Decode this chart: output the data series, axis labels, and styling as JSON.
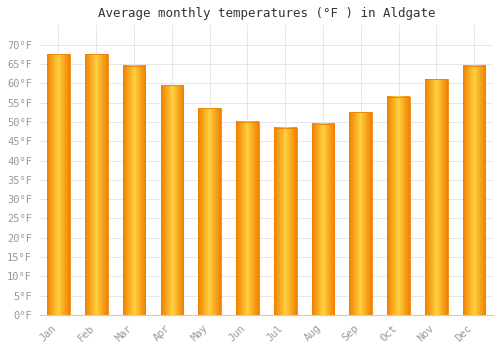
{
  "title": "Average monthly temperatures (°F ) in Aldgate",
  "months": [
    "Jan",
    "Feb",
    "Mar",
    "Apr",
    "May",
    "Jun",
    "Jul",
    "Aug",
    "Sep",
    "Oct",
    "Nov",
    "Dec"
  ],
  "values": [
    67.5,
    67.5,
    64.5,
    59.5,
    53.5,
    50.0,
    48.5,
    49.5,
    52.5,
    56.5,
    61.0,
    64.5
  ],
  "bar_color_center": "#FFD040",
  "bar_color_edge": "#F08000",
  "background_color": "#FFFFFF",
  "grid_color": "#DDDDDD",
  "ytick_labels": [
    "0°F",
    "5°F",
    "10°F",
    "15°F",
    "20°F",
    "25°F",
    "30°F",
    "35°F",
    "40°F",
    "45°F",
    "50°F",
    "55°F",
    "60°F",
    "65°F",
    "70°F"
  ],
  "ytick_values": [
    0,
    5,
    10,
    15,
    20,
    25,
    30,
    35,
    40,
    45,
    50,
    55,
    60,
    65,
    70
  ],
  "ylim": [
    0,
    75
  ],
  "title_fontsize": 9,
  "tick_fontsize": 7.5,
  "tick_color": "#999999",
  "font_family": "monospace",
  "bar_width": 0.6
}
